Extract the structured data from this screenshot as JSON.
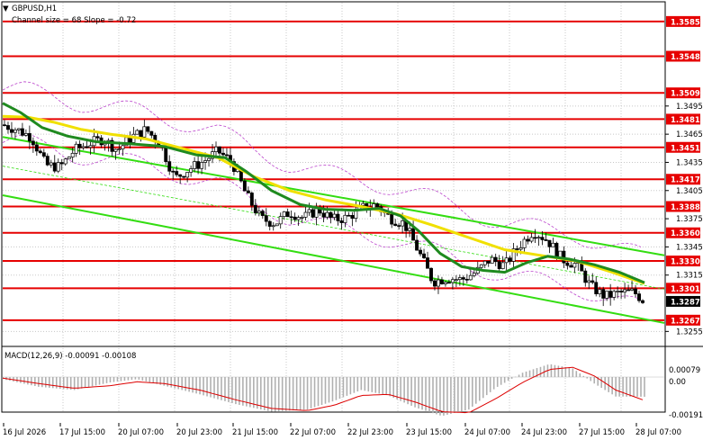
{
  "header": {
    "symbol_title": "GBPUSD,H1",
    "indicator_caption": "Channel size = 68 Slope = -0.72"
  },
  "macd": {
    "label": "MACD(12,26,9) -0.00091 -0.00108",
    "scale_labels": [
      "0.00079",
      "0.00",
      "-0.00191"
    ]
  },
  "price_axis": {
    "labels": [
      "1.3495",
      "1.3465",
      "1.3435",
      "1.3405",
      "1.3375",
      "1.3345",
      "1.3315",
      "1.3255"
    ],
    "current_price": "1.3287"
  },
  "time_axis": {
    "labels": [
      "16 Jul 2026",
      "17 Jul 15:00",
      "20 Jul 07:00",
      "20 Jul 23:00",
      "21 Jul 15:00",
      "22 Jul 07:00",
      "22 Jul 23:00",
      "23 Jul 15:00",
      "24 Jul 07:00",
      "24 Jul 23:00",
      "27 Jul 15:00",
      "28 Jul 07:00"
    ]
  },
  "colors": {
    "level_line": "#e60000",
    "channel": "#33dd11",
    "ma_fast": "#1f8a1f",
    "ma_slow": "#f0e000",
    "envelope": "#bb44cc",
    "grid": "#c8c8c8"
  },
  "chart_data": [
    {
      "type": "candlestick",
      "title": "GBPUSD,H1",
      "y_range": [
        1.324,
        1.3605
      ],
      "levels": [
        {
          "price": 1.3585,
          "label": "1.3585"
        },
        {
          "price": 1.3548,
          "label": "1.3548"
        },
        {
          "price": 1.3509,
          "label": "1.3509"
        },
        {
          "price": 1.3481,
          "label": "1.3481"
        },
        {
          "price": 1.3451,
          "label": "1.3451"
        },
        {
          "price": 1.3417,
          "label": "1.3417"
        },
        {
          "price": 1.3388,
          "label": "1.3388"
        },
        {
          "price": 1.336,
          "label": "1.3360"
        },
        {
          "price": 1.333,
          "label": "1.3330"
        },
        {
          "price": 1.3301,
          "label": "1.3301"
        },
        {
          "price": 1.3267,
          "label": "1.3267"
        }
      ],
      "close_path": [
        [
          0,
          1.3475
        ],
        [
          8,
          1.347
        ],
        [
          16,
          1.3462
        ],
        [
          24,
          1.3432
        ],
        [
          32,
          1.343
        ],
        [
          40,
          1.3448
        ],
        [
          48,
          1.3455
        ],
        [
          56,
          1.346
        ],
        [
          64,
          1.3448
        ],
        [
          72,
          1.3462
        ],
        [
          80,
          1.347
        ],
        [
          88,
          1.3454
        ],
        [
          96,
          1.3418
        ],
        [
          104,
          1.3428
        ],
        [
          112,
          1.3436
        ],
        [
          120,
          1.3447
        ],
        [
          128,
          1.3435
        ],
        [
          136,
          1.34
        ],
        [
          144,
          1.3375
        ],
        [
          152,
          1.337
        ],
        [
          160,
          1.3382
        ],
        [
          168,
          1.3376
        ],
        [
          176,
          1.3385
        ],
        [
          184,
          1.3374
        ],
        [
          192,
          1.3376
        ],
        [
          200,
          1.3386
        ],
        [
          208,
          1.339
        ],
        [
          216,
          1.3376
        ],
        [
          224,
          1.337
        ],
        [
          232,
          1.334
        ],
        [
          240,
          1.3308
        ],
        [
          248,
          1.3312
        ],
        [
          256,
          1.331
        ],
        [
          264,
          1.3318
        ],
        [
          272,
          1.3332
        ],
        [
          280,
          1.3325
        ],
        [
          288,
          1.3346
        ],
        [
          296,
          1.3362
        ],
        [
          304,
          1.3352
        ],
        [
          312,
          1.3332
        ],
        [
          320,
          1.3326
        ],
        [
          328,
          1.3303
        ],
        [
          336,
          1.3292
        ],
        [
          344,
          1.3296
        ],
        [
          352,
          1.3297
        ],
        [
          358,
          1.3287
        ]
      ],
      "ma_slow_path": [
        [
          0,
          1.3484
        ],
        [
          14,
          1.3483
        ],
        [
          28,
          1.3478
        ],
        [
          44,
          1.347
        ],
        [
          60,
          1.3465
        ],
        [
          80,
          1.346
        ],
        [
          100,
          1.345
        ],
        [
          120,
          1.344
        ],
        [
          140,
          1.342
        ],
        [
          160,
          1.3405
        ],
        [
          180,
          1.3395
        ],
        [
          200,
          1.3388
        ],
        [
          220,
          1.338
        ],
        [
          240,
          1.3368
        ],
        [
          260,
          1.3355
        ],
        [
          280,
          1.3342
        ],
        [
          300,
          1.3336
        ],
        [
          320,
          1.333
        ],
        [
          340,
          1.3318
        ],
        [
          358,
          1.3306
        ]
      ],
      "ma_fast_path": [
        [
          0,
          1.3498
        ],
        [
          10,
          1.3488
        ],
        [
          22,
          1.3472
        ],
        [
          36,
          1.3463
        ],
        [
          52,
          1.3457
        ],
        [
          70,
          1.3455
        ],
        [
          90,
          1.3452
        ],
        [
          108,
          1.3443
        ],
        [
          124,
          1.344
        ],
        [
          136,
          1.3425
        ],
        [
          150,
          1.3405
        ],
        [
          166,
          1.339
        ],
        [
          180,
          1.3385
        ],
        [
          196,
          1.3384
        ],
        [
          210,
          1.3386
        ],
        [
          222,
          1.3378
        ],
        [
          232,
          1.3362
        ],
        [
          244,
          1.3338
        ],
        [
          256,
          1.3324
        ],
        [
          268,
          1.332
        ],
        [
          280,
          1.3318
        ],
        [
          292,
          1.3328
        ],
        [
          304,
          1.3335
        ],
        [
          316,
          1.3332
        ],
        [
          330,
          1.3326
        ],
        [
          344,
          1.3318
        ],
        [
          358,
          1.3307
        ]
      ],
      "channel_upper": [
        [
          0,
          1.3462
        ],
        [
          358,
          1.334
        ]
      ],
      "channel_lower": [
        [
          0,
          1.34
        ],
        [
          358,
          1.3268
        ]
      ],
      "channel_mid": [
        [
          0,
          1.3431
        ],
        [
          358,
          1.3304
        ]
      ]
    },
    {
      "type": "bar",
      "title": "MACD(12,26,9) -0.00091 -0.00108",
      "y_range": [
        -0.00191,
        0.00079
      ],
      "histogram": [
        [
          0,
          -0.0001
        ],
        [
          20,
          -0.00045
        ],
        [
          40,
          -0.0006
        ],
        [
          60,
          -0.00025
        ],
        [
          75,
          -0.0001
        ],
        [
          90,
          -0.0004
        ],
        [
          110,
          -0.0008
        ],
        [
          130,
          -0.00125
        ],
        [
          150,
          -0.0016
        ],
        [
          170,
          -0.0015
        ],
        [
          185,
          -0.0011
        ],
        [
          200,
          -0.0006
        ],
        [
          215,
          -0.00085
        ],
        [
          230,
          -0.0014
        ],
        [
          245,
          -0.0018
        ],
        [
          260,
          -0.0015
        ],
        [
          275,
          -0.0005
        ],
        [
          290,
          0.0002
        ],
        [
          305,
          0.0006
        ],
        [
          318,
          0.0004
        ],
        [
          330,
          -0.0003
        ],
        [
          342,
          -0.0009
        ],
        [
          358,
          -0.00091
        ]
      ],
      "signal": [
        [
          0,
          -5e-05
        ],
        [
          20,
          -0.0003
        ],
        [
          40,
          -0.00052
        ],
        [
          60,
          -0.0004
        ],
        [
          75,
          -0.00022
        ],
        [
          90,
          -0.0003
        ],
        [
          110,
          -0.0006
        ],
        [
          130,
          -0.00105
        ],
        [
          150,
          -0.00145
        ],
        [
          170,
          -0.00155
        ],
        [
          185,
          -0.0013
        ],
        [
          200,
          -0.00085
        ],
        [
          215,
          -0.0008
        ],
        [
          230,
          -0.00115
        ],
        [
          245,
          -0.0016
        ],
        [
          260,
          -0.00165
        ],
        [
          275,
          -0.001
        ],
        [
          290,
          -0.00025
        ],
        [
          305,
          0.00035
        ],
        [
          318,
          0.00045
        ],
        [
          330,
          5e-05
        ],
        [
          342,
          -0.0006
        ],
        [
          358,
          -0.00108
        ]
      ]
    }
  ]
}
